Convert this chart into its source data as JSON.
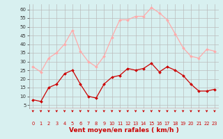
{
  "hours": [
    0,
    1,
    2,
    3,
    4,
    5,
    6,
    7,
    8,
    9,
    10,
    11,
    12,
    13,
    14,
    15,
    16,
    17,
    18,
    19,
    20,
    21,
    22,
    23
  ],
  "wind_avg": [
    8,
    7,
    15,
    17,
    23,
    25,
    17,
    10,
    9,
    17,
    21,
    22,
    26,
    25,
    26,
    29,
    24,
    27,
    25,
    22,
    17,
    13,
    13,
    14
  ],
  "wind_gust": [
    27,
    24,
    32,
    35,
    40,
    48,
    36,
    30,
    27,
    33,
    44,
    54,
    54,
    56,
    56,
    61,
    58,
    54,
    46,
    38,
    33,
    32,
    37,
    36
  ],
  "line_avg_color": "#cc0000",
  "line_gust_color": "#ffaaaa",
  "bg_color": "#d8f0f0",
  "grid_color": "#bbbbbb",
  "xlabel": "Vent moyen/en rafales ( km/h )",
  "ylabel_ticks": [
    5,
    10,
    15,
    20,
    25,
    30,
    35,
    40,
    45,
    50,
    55,
    60
  ],
  "ylim": [
    3,
    63
  ],
  "xlim": [
    -0.5,
    23.5
  ],
  "tick_color": "#cc0000",
  "label_color": "#cc0000"
}
